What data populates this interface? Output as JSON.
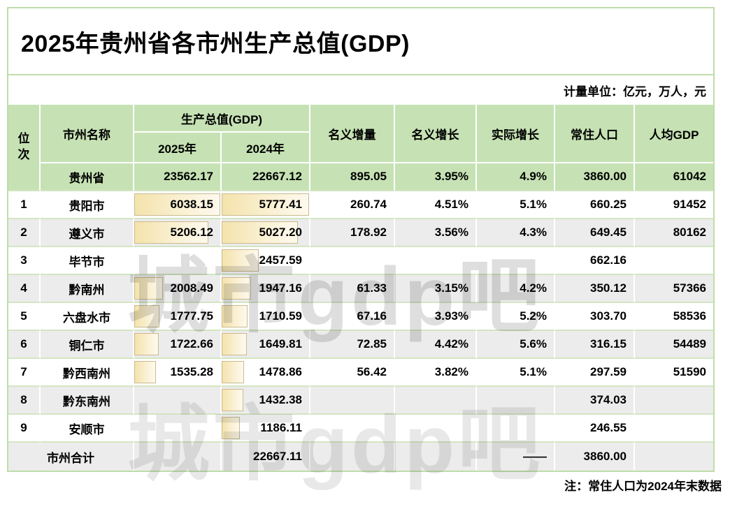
{
  "watermark": "城市gdp吧",
  "colors": {
    "header_green": "#c6e2b4",
    "band_gray": "#ececec",
    "grid_line_green": "#d3e5c3",
    "outer_border_green": "#bfdcab",
    "bar_border": "#c8bb8d",
    "bar_fill_left": "#f4e3ac",
    "bar_fill_right": "#fdf9ee"
  },
  "chart_data": {
    "type": "table",
    "title": "2025年贵州省各市州生产总值(GDP)",
    "unit_note": "计量单位：亿元，万人，元",
    "footnote": "注：常住人口为2024年末数据",
    "header": {
      "rank": "位次",
      "name": "市州名称",
      "gdp_group": "生产总值(GDP)",
      "y2025": "2025年",
      "y2024": "2024年",
      "inc": "名义增量",
      "nom": "名义增长",
      "real": "实际增长",
      "pop": "常住人口",
      "pc": "人均GDP"
    },
    "province_row": {
      "name": "贵州省",
      "gdp_2025": "23562.17",
      "gdp_2024": "22667.12",
      "inc": "895.05",
      "nom": "3.95%",
      "real": "4.9%",
      "pop": "3860.00",
      "pc": "61042"
    },
    "rows": [
      {
        "rank": "1",
        "name": "贵阳市",
        "gdp_2025": "6038.15",
        "gdp_2024": "5777.41",
        "inc": "260.74",
        "nom": "4.51%",
        "real": "5.1%",
        "pop": "660.25",
        "pc": "91452"
      },
      {
        "rank": "2",
        "name": "遵义市",
        "gdp_2025": "5206.12",
        "gdp_2024": "5027.20",
        "inc": "178.92",
        "nom": "3.56%",
        "real": "4.3%",
        "pop": "649.45",
        "pc": "80162"
      },
      {
        "rank": "3",
        "name": "毕节市",
        "gdp_2025": "",
        "gdp_2024": "2457.59",
        "inc": "",
        "nom": "",
        "real": "",
        "pop": "662.16",
        "pc": ""
      },
      {
        "rank": "4",
        "name": "黔南州",
        "gdp_2025": "2008.49",
        "gdp_2024": "1947.16",
        "inc": "61.33",
        "nom": "3.15%",
        "real": "4.2%",
        "pop": "350.12",
        "pc": "57366"
      },
      {
        "rank": "5",
        "name": "六盘水市",
        "gdp_2025": "1777.75",
        "gdp_2024": "1710.59",
        "inc": "67.16",
        "nom": "3.93%",
        "real": "5.2%",
        "pop": "303.70",
        "pc": "58536"
      },
      {
        "rank": "6",
        "name": "铜仁市",
        "gdp_2025": "1722.66",
        "gdp_2024": "1649.81",
        "inc": "72.85",
        "nom": "4.42%",
        "real": "5.6%",
        "pop": "316.15",
        "pc": "54489"
      },
      {
        "rank": "7",
        "name": "黔西南州",
        "gdp_2025": "1535.28",
        "gdp_2024": "1478.86",
        "inc": "56.42",
        "nom": "3.82%",
        "real": "5.1%",
        "pop": "297.59",
        "pc": "51590"
      },
      {
        "rank": "8",
        "name": "黔东南州",
        "gdp_2025": "",
        "gdp_2024": "1432.38",
        "inc": "",
        "nom": "",
        "real": "",
        "pop": "374.03",
        "pc": ""
      },
      {
        "rank": "9",
        "name": "安顺市",
        "gdp_2025": "",
        "gdp_2024": "1186.11",
        "inc": "",
        "nom": "",
        "real": "",
        "pop": "246.55",
        "pc": ""
      }
    ],
    "total_row": {
      "label": "市州合计",
      "gdp_2025": "",
      "gdp_2024": "22667.11",
      "inc": "",
      "nom": "",
      "real": "——",
      "pop": "3860.00",
      "pc": ""
    }
  }
}
